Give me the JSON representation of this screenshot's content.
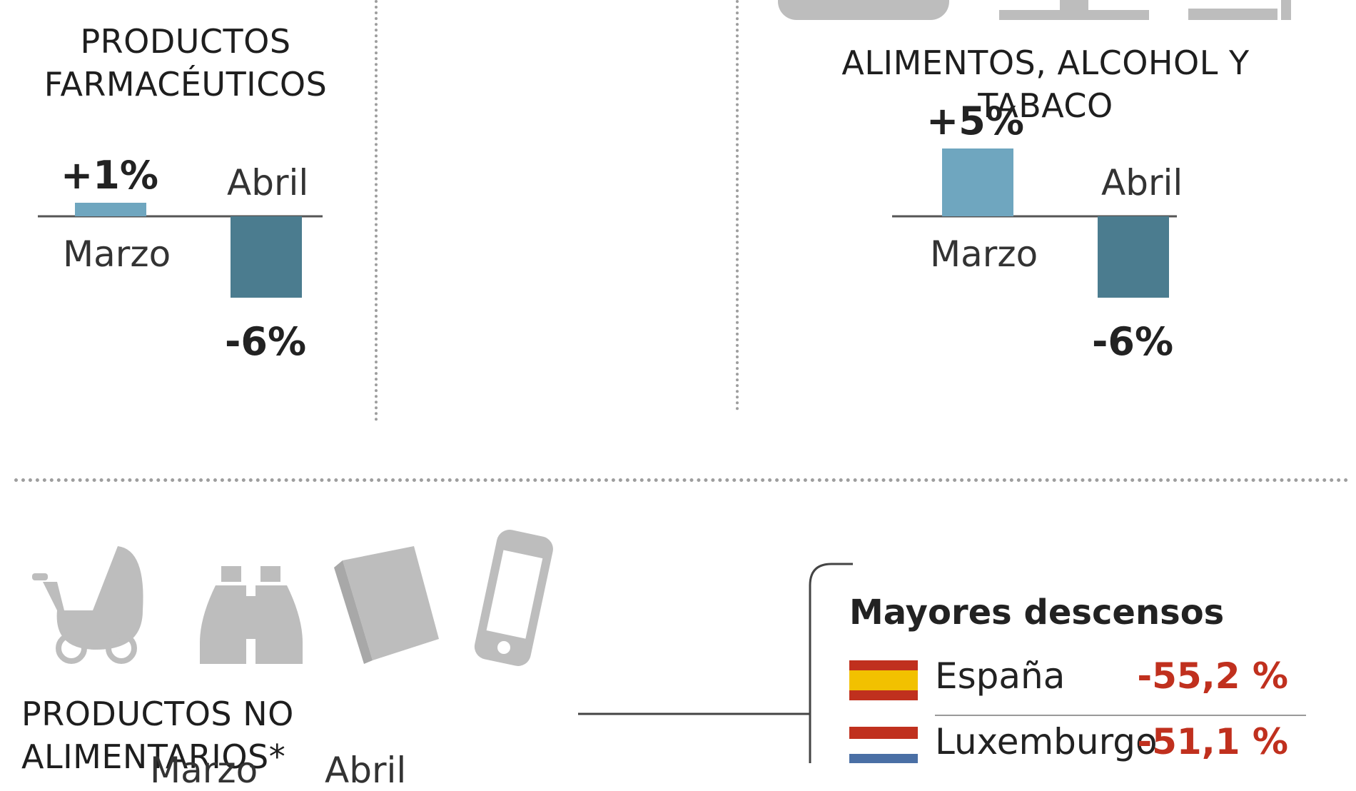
{
  "colors": {
    "march": "#6fa6bf",
    "april": "#4b7c8f",
    "negative": "#c0301e",
    "icon": "#bdbdbd"
  },
  "panels": [
    {
      "title_line1": "PRODUCTOS",
      "title_line2": "FARMACÉUTICOS",
      "chart_data": {
        "type": "bar",
        "categories": [
          "Marzo",
          "Abril"
        ],
        "values": [
          1,
          -6
        ],
        "value_labels": [
          "+1%",
          "-6%"
        ]
      }
    },
    {
      "title_line1": "ALIMENTOS, ALCOHOL Y TABACO",
      "title_line2": "",
      "chart_data": {
        "type": "bar",
        "categories": [
          "Marzo",
          "Abril"
        ],
        "values": [
          5,
          -6
        ],
        "value_labels": [
          "+5%",
          "-6%"
        ]
      }
    }
  ],
  "bottom": {
    "title": "PRODUCTOS NO ALIMENTARIOS*",
    "partial_label_1": "Marzo",
    "partial_label_2": "Abril",
    "icons": [
      "stroller-icon",
      "binoculars-icon",
      "book-icon",
      "smartphone-icon"
    ]
  },
  "box": {
    "title": "Mayores descensos",
    "rows": [
      {
        "country": "España",
        "value": "-55,2 %",
        "flag": "spain-flag-icon"
      },
      {
        "country": "Luxemburgo",
        "value": "-51,1 %",
        "flag": "luxembourg-flag-icon"
      }
    ]
  }
}
